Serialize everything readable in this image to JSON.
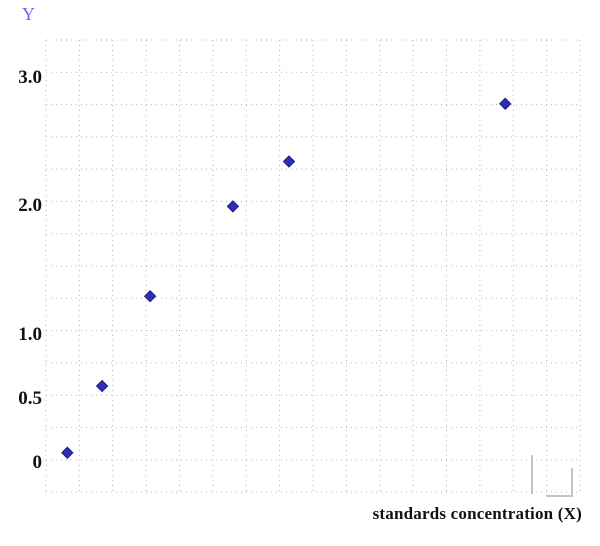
{
  "chart": {
    "y_axis_title": "Y",
    "x_axis_title": "standards concentration (X)",
    "marker_color": "#2e2eb8",
    "marker_stroke": "#1c1c86",
    "axis_title_color": "#6a6af0",
    "grid_color": "#b5b5b5",
    "tick_label_color": "#111111",
    "corner_glyph_color": "#c4c4c4"
  },
  "chart_data": {
    "type": "scatter",
    "title": "",
    "xlabel": "standards concentration (X)",
    "ylabel": "Y",
    "xlim": [
      0,
      10
    ],
    "ylim": [
      -0.2,
      3.3
    ],
    "grid": true,
    "legend": "none",
    "x_ticks": [],
    "y_ticks": [
      {
        "value": 3.0,
        "label": "3.0"
      },
      {
        "value": 2.0,
        "label": "2.0"
      },
      {
        "value": 1.0,
        "label": "1.0"
      },
      {
        "value": 0.5,
        "label": "0.5"
      },
      {
        "value": 0.0,
        "label": "0"
      }
    ],
    "series": [
      {
        "name": "standards",
        "marker": "diamond",
        "points": [
          {
            "x": 0.4,
            "y": 0.08
          },
          {
            "x": 1.05,
            "y": 0.6
          },
          {
            "x": 1.95,
            "y": 1.3
          },
          {
            "x": 3.5,
            "y": 2.0
          },
          {
            "x": 4.55,
            "y": 2.35
          },
          {
            "x": 8.6,
            "y": 2.8
          }
        ]
      }
    ]
  }
}
